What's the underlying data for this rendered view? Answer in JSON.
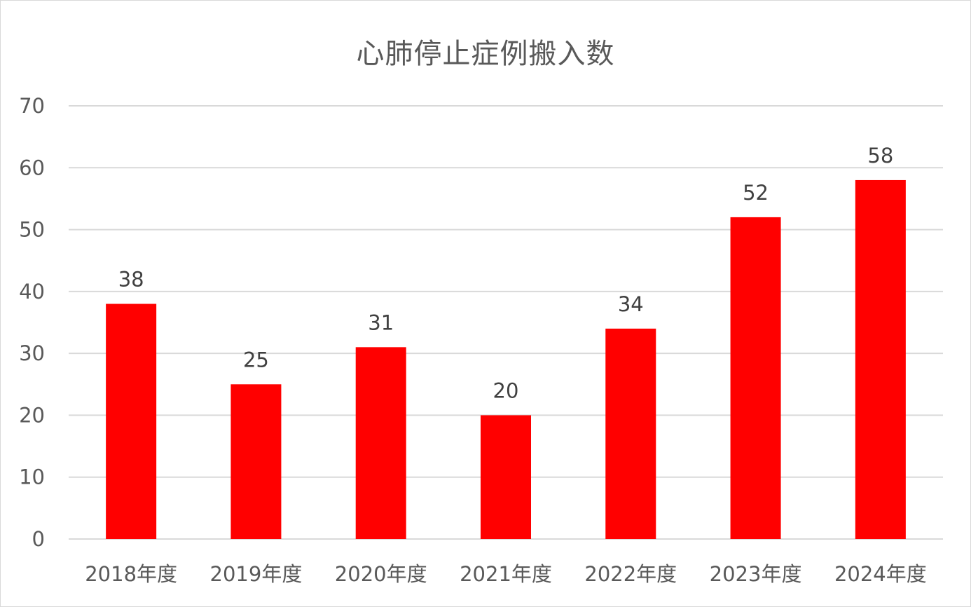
{
  "chart_data": {
    "type": "bar",
    "title": "心肺停止症例搬入数",
    "xlabel": "",
    "ylabel": "",
    "categories": [
      "2018年度",
      "2019年度",
      "2020年度",
      "2021年度",
      "2022年度",
      "2023年度",
      "2024年度"
    ],
    "values": [
      38,
      25,
      31,
      20,
      34,
      52,
      58
    ],
    "ylim": [
      0,
      70
    ],
    "yticks": [
      0,
      10,
      20,
      30,
      40,
      50,
      60,
      70
    ],
    "grid": true,
    "legend": "none",
    "bar_color": "#ff0000"
  }
}
